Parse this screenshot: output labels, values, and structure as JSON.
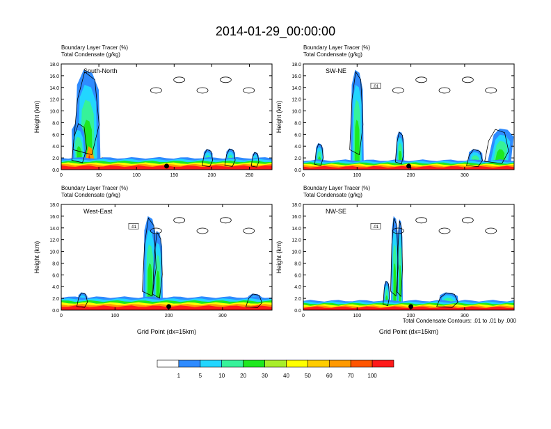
{
  "figure": {
    "title": "2014-01-29_00:00:00",
    "footnote": "Total Condensate Contours: .01 to .01 by .000"
  },
  "colorbar": {
    "colors": [
      "#ffffff",
      "#2e8bff",
      "#22d6ff",
      "#36f29a",
      "#1ee81e",
      "#a8ee2a",
      "#ffff00",
      "#ffcc00",
      "#ff9900",
      "#ff5500",
      "#ff1a1a"
    ],
    "labels": [
      "1",
      "5",
      "10",
      "20",
      "30",
      "40",
      "50",
      "60",
      "70",
      "100"
    ]
  },
  "panels": [
    {
      "key": "south-north",
      "label": "South-North",
      "subtitle_left": "Boundary Layer Tracer    (%)",
      "subtitle_left2": "Total Condensate   (g/kg)",
      "ylabel": "Height (km)",
      "xlabel": "",
      "xlim": [
        0,
        280
      ],
      "ylim": [
        0,
        18
      ],
      "xticks": [
        0,
        50,
        100,
        150,
        200,
        250
      ],
      "ytick_labels": [
        "0.0",
        "2.0",
        "4.0",
        "6.0",
        "8.0",
        "10.0",
        "12.0",
        "14.0",
        "16.0",
        "18.0"
      ],
      "contour_label": "",
      "surface_marker_x": 140
    },
    {
      "key": "sw-ne",
      "label": "SW-NE",
      "subtitle_left": "Boundary Layer Tracer    (%)",
      "subtitle_left2": "Total Condensate   (g/kg)",
      "ylabel": "Height (km)",
      "xlabel": "",
      "xlim": [
        0,
        392
      ],
      "ylim": [
        0,
        18
      ],
      "xticks": [
        0,
        100,
        200,
        300
      ],
      "ytick_labels": [
        "0.0",
        "2.0",
        "4.0",
        "6.0",
        "8.0",
        "10.0",
        "12.0",
        "14.0",
        "16.0",
        "18.0"
      ],
      "contour_label": ".01",
      "surface_marker_x": 196
    },
    {
      "key": "west-east",
      "label": "West-East",
      "subtitle_left": "Boundary Layer Tracer    (%)",
      "subtitle_left2": "Total Condensate   (g/kg)",
      "ylabel": "Height (km)",
      "xlabel": "Grid Point (dx=15km)",
      "xlim": [
        0,
        392
      ],
      "ylim": [
        0,
        18
      ],
      "xticks": [
        0,
        100,
        200,
        300
      ],
      "ytick_labels": [
        "0.0",
        "2.0",
        "4.0",
        "6.0",
        "8.0",
        "10.0",
        "12.0",
        "14.0",
        "16.0",
        "18.0"
      ],
      "contour_label": ".01",
      "surface_marker_x": 200
    },
    {
      "key": "nw-se",
      "label": "NW-SE",
      "subtitle_left": "Boundary Layer Tracer    (%)",
      "subtitle_left2": "Total Condensate   (g/kg)",
      "ylabel": "Height (km)",
      "xlabel": "Grid Point (dx=15km)",
      "xlim": [
        0,
        392
      ],
      "ylim": [
        0,
        18
      ],
      "xticks": [
        0,
        100,
        200,
        300
      ],
      "ytick_labels": [
        "0.0",
        "2.0",
        "4.0",
        "6.0",
        "8.0",
        "10.0",
        "12.0",
        "14.0",
        "16.0",
        "18.0"
      ],
      "contour_label": ".01",
      "surface_marker_x": 200
    }
  ],
  "chart_data": [
    {
      "type": "heatmap",
      "title": "South-North",
      "xlabel": "",
      "ylabel": "Height (km)",
      "xlim": [
        0,
        280
      ],
      "ylim": [
        0,
        18
      ],
      "plumes": [
        {
          "x": 35,
          "w": 35,
          "top": 17.0,
          "lean": 0
        },
        {
          "x": 25,
          "w": 20,
          "top": 8.0,
          "lean": -3
        },
        {
          "x": 195,
          "w": 14,
          "top": 3.5,
          "lean": 0
        },
        {
          "x": 225,
          "w": 14,
          "top": 3.6,
          "lean": 0
        },
        {
          "x": 258,
          "w": 10,
          "top": 3.0,
          "lean": 0
        }
      ],
      "warm_cores": [
        {
          "x": 38,
          "w": 18,
          "top": 4.0
        },
        {
          "x": 55,
          "w": 10,
          "top": 2.2
        }
      ],
      "boundary_layer_top": 2.0
    },
    {
      "type": "heatmap",
      "title": "SW-NE",
      "xlabel": "",
      "ylabel": "Height (km)",
      "xlim": [
        0,
        392
      ],
      "ylim": [
        0,
        18
      ],
      "plumes": [
        {
          "x": 100,
          "w": 25,
          "top": 17.0,
          "lean": 0
        },
        {
          "x": 30,
          "w": 16,
          "top": 4.5,
          "lean": 0
        },
        {
          "x": 180,
          "w": 16,
          "top": 6.5,
          "lean": 0
        },
        {
          "x": 362,
          "w": 45,
          "top": 7.0,
          "lean": 10
        },
        {
          "x": 320,
          "w": 30,
          "top": 3.5,
          "lean": 0
        }
      ],
      "warm_cores": [],
      "boundary_layer_top": 1.6
    },
    {
      "type": "heatmap",
      "title": "West-East",
      "xlabel": "Grid Point (dx=15km)",
      "ylabel": "Height (km)",
      "xlim": [
        0,
        392
      ],
      "ylim": [
        0,
        18
      ],
      "plumes": [
        {
          "x": 165,
          "w": 26,
          "top": 16.0,
          "lean": 0
        },
        {
          "x": 180,
          "w": 18,
          "top": 13.5,
          "lean": 0
        },
        {
          "x": 40,
          "w": 20,
          "top": 3.0,
          "lean": 0
        },
        {
          "x": 360,
          "w": 30,
          "top": 2.8,
          "lean": 0
        }
      ],
      "warm_cores": [],
      "boundary_layer_top": 2.2
    },
    {
      "type": "heatmap",
      "title": "NW-SE",
      "xlabel": "Grid Point (dx=15km)",
      "ylabel": "Height (km)",
      "xlim": [
        0,
        392
      ],
      "ylim": [
        0,
        18
      ],
      "plumes": [
        {
          "x": 170,
          "w": 14,
          "top": 16.0,
          "lean": 0
        },
        {
          "x": 180,
          "w": 10,
          "top": 15.5,
          "lean": 0
        },
        {
          "x": 155,
          "w": 12,
          "top": 5.0,
          "lean": 0
        },
        {
          "x": 270,
          "w": 40,
          "top": 3.0,
          "lean": 0
        }
      ],
      "warm_cores": [],
      "boundary_layer_top": 1.6
    }
  ]
}
